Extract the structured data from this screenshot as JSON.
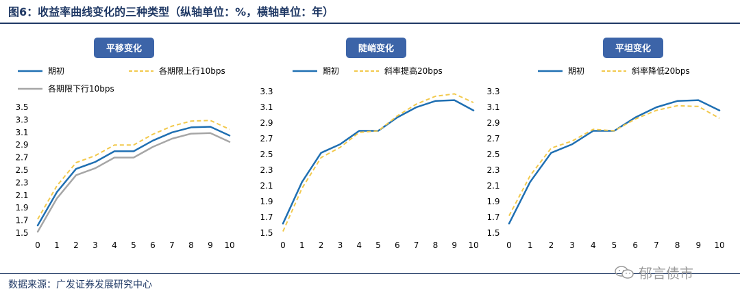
{
  "figure": {
    "title": "图6：收益率曲线变化的三种类型（纵轴单位：%，横轴单位：年）",
    "source": "数据来源：广发证券发展研究中心",
    "watermark": "郁言债市"
  },
  "colors": {
    "initial": "#1f6fb2",
    "up": "#f2c94c",
    "down": "#a6a6a6",
    "badge": "#3c64a8"
  },
  "chart_data": [
    {
      "type": "line",
      "title": "平移变化",
      "x": [
        0,
        1,
        2,
        3,
        4,
        5,
        6,
        7,
        8,
        9,
        10
      ],
      "ylim": [
        1.5,
        3.5
      ],
      "yticks": [
        "3.5",
        "3.3",
        "3.1",
        "2.9",
        "2.7",
        "2.5",
        "2.3",
        "2.1",
        "1.9",
        "1.7",
        "1.5"
      ],
      "legend": "top-left",
      "series": [
        {
          "name": "期初",
          "style": "solid",
          "color": "#1f6fb2",
          "values": [
            1.62,
            2.15,
            2.52,
            2.63,
            2.8,
            2.8,
            2.97,
            3.1,
            3.18,
            3.19,
            3.05
          ]
        },
        {
          "name": "各期限上行10bps",
          "style": "dashed",
          "color": "#f2c94c",
          "values": [
            1.72,
            2.25,
            2.62,
            2.73,
            2.9,
            2.9,
            3.07,
            3.2,
            3.28,
            3.29,
            3.15
          ]
        },
        {
          "name": "各期限下行10bps",
          "style": "solid",
          "color": "#a6a6a6",
          "values": [
            1.52,
            2.05,
            2.42,
            2.53,
            2.7,
            2.7,
            2.87,
            3.0,
            3.08,
            3.09,
            2.95
          ]
        }
      ]
    },
    {
      "type": "line",
      "title": "陡峭变化",
      "x": [
        0,
        1,
        2,
        3,
        4,
        5,
        6,
        7,
        8,
        9,
        10
      ],
      "ylim": [
        1.5,
        3.3
      ],
      "yticks": [
        "3.3",
        "3.1",
        "2.9",
        "2.7",
        "2.5",
        "2.3",
        "2.1",
        "1.9",
        "1.7",
        "1.5"
      ],
      "legend": "top-left",
      "series": [
        {
          "name": "期初",
          "style": "solid",
          "color": "#1f6fb2",
          "values": [
            1.62,
            2.15,
            2.52,
            2.63,
            2.8,
            2.8,
            2.97,
            3.1,
            3.18,
            3.19,
            3.06
          ]
        },
        {
          "name": "斜率提高20bps",
          "style": "dashed",
          "color": "#f2c94c",
          "values": [
            1.52,
            2.07,
            2.46,
            2.59,
            2.78,
            2.8,
            2.99,
            3.14,
            3.24,
            3.27,
            3.16
          ]
        }
      ]
    },
    {
      "type": "line",
      "title": "平坦变化",
      "x": [
        0,
        1,
        2,
        3,
        4,
        5,
        6,
        7,
        8,
        9,
        10
      ],
      "ylim": [
        1.5,
        3.3
      ],
      "yticks": [
        "3.3",
        "3.1",
        "2.9",
        "2.7",
        "2.5",
        "2.3",
        "2.1",
        "1.9",
        "1.7",
        "1.5"
      ],
      "legend": "top-left",
      "series": [
        {
          "name": "期初",
          "style": "solid",
          "color": "#1f6fb2",
          "values": [
            1.62,
            2.15,
            2.52,
            2.63,
            2.8,
            2.8,
            2.97,
            3.1,
            3.18,
            3.19,
            3.06
          ]
        },
        {
          "name": "斜率降低20bps",
          "style": "dashed",
          "color": "#f2c94c",
          "values": [
            1.72,
            2.23,
            2.58,
            2.67,
            2.82,
            2.8,
            2.95,
            3.06,
            3.12,
            3.11,
            2.96
          ]
        }
      ]
    }
  ]
}
